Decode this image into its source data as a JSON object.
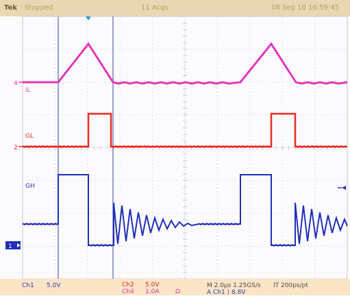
{
  "topbar": {
    "brand": "Tek",
    "status": "Stopped",
    "acquisitions": "11 Acqs",
    "datetime": "08 Sep 10 16:59:45"
  },
  "channels": {
    "ch4": {
      "marker": "4",
      "trace_label": "iL",
      "color": "#e535b8"
    },
    "ch2": {
      "marker": "2",
      "trace_label": "GL",
      "color": "#ec2a1f"
    },
    "ch1": {
      "marker": "1",
      "trace_label": "GH",
      "color": "#1f2fb6"
    }
  },
  "readout": {
    "ch1_label": "Ch1",
    "ch1_scale": "5.0V",
    "ch2_label": "Ch2",
    "ch2_scale": "5.0V",
    "ch4_label": "Ch4",
    "ch4_scale": "1.0A",
    "ch4_coupling": "Ω",
    "horizontal": "M 2.0μs 1.25GS/s",
    "record": "IT 200ps/pt",
    "trigger": "A  Ch1  ⟩  8.8V"
  },
  "colors": {
    "grid": "#c9c9c9",
    "cursor": "#7a7fc0",
    "trigger_marker": "#2aa0c8"
  }
}
